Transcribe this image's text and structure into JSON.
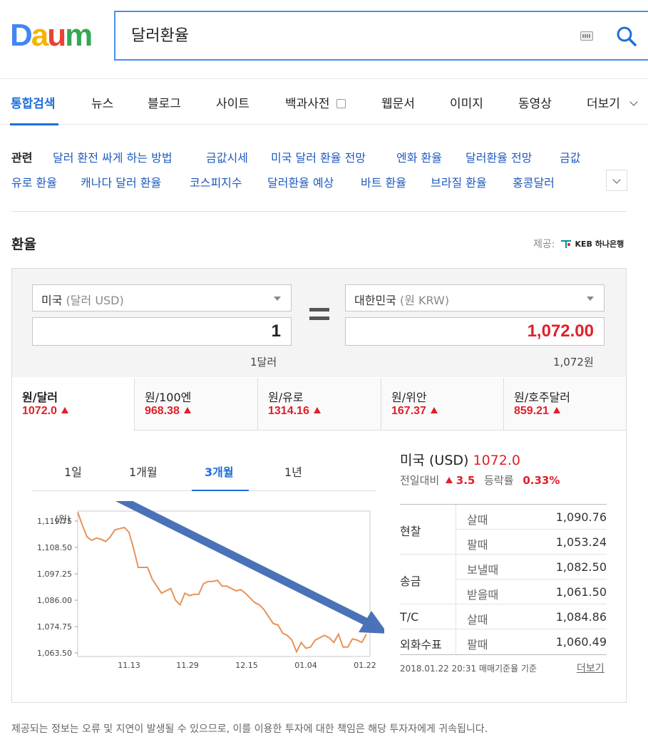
{
  "logo": {
    "text": [
      "D",
      "a",
      "u",
      "m"
    ],
    "colors": [
      "#4285f4",
      "#f5b400",
      "#e94335",
      "#34a853"
    ]
  },
  "search": {
    "query": "달러환율"
  },
  "tabs": [
    "통합검색",
    "뉴스",
    "블로그",
    "사이트",
    "백과사전",
    "웹문서",
    "이미지",
    "동영상",
    "더보기"
  ],
  "related": {
    "heading": "관련",
    "row1": [
      "달러 환전 싸게 하는 방법",
      "금값시세",
      "미국 달러 환율 전망",
      "엔화 환율",
      "달러환율 전망",
      "금값"
    ],
    "row2": [
      "유로 환율",
      "캐나다 달러 환율",
      "코스피지수",
      "달러환율 예상",
      "바트 환율",
      "브라질 환율",
      "홍콩달러"
    ]
  },
  "section": {
    "title": "환율",
    "provider_label": "제공:",
    "provider_name": "KEB 하나은행"
  },
  "converter": {
    "from_country": "미국",
    "from_sub": "(달러 USD)",
    "to_country": "대한민국",
    "to_sub": "(원 KRW)",
    "from_amount": "1",
    "to_amount": "1,072.00",
    "from_label": "1달러",
    "to_label": "1,072원"
  },
  "currency_tabs": [
    {
      "name": "원/달러",
      "value": "1072.0"
    },
    {
      "name": "원/100엔",
      "value": "968.38"
    },
    {
      "name": "원/유로",
      "value": "1314.16"
    },
    {
      "name": "원/위안",
      "value": "167.37"
    },
    {
      "name": "원/호주달러",
      "value": "859.21"
    }
  ],
  "periods": [
    "1일",
    "1개월",
    "3개월",
    "1년"
  ],
  "chart_data": {
    "type": "line",
    "ylabel": "(원)",
    "yticks": [
      "1,119.75",
      "1,108.50",
      "1,097.25",
      "1,086.00",
      "1,074.75",
      "1,063.50"
    ],
    "ytick_values": [
      1119.75,
      1108.5,
      1097.25,
      1086.0,
      1074.75,
      1063.5
    ],
    "xticks": [
      "11.13",
      "11.29",
      "12.15",
      "01.04",
      "01.22"
    ],
    "ylim": [
      1062.0,
      1124.0
    ],
    "values": [
      1123.5,
      1118,
      1113,
      1111.5,
      1112.5,
      1112,
      1111,
      1113,
      1116,
      1116.5,
      1117,
      1115,
      1108,
      1100,
      1100,
      1100,
      1095,
      1092,
      1089,
      1090,
      1091,
      1086,
      1084,
      1089,
      1088,
      1088.5,
      1088.5,
      1093,
      1094,
      1094,
      1094.5,
      1092,
      1092,
      1091,
      1090,
      1090.5,
      1089,
      1087,
      1085,
      1084,
      1082,
      1079,
      1076,
      1075.5,
      1072,
      1071,
      1069,
      1064,
      1068,
      1065.5,
      1066,
      1069,
      1070,
      1071,
      1070,
      1068,
      1071.5,
      1066,
      1066,
      1069.5,
      1069,
      1068,
      1071.5
    ],
    "line_color": "#e8915a",
    "arrow_color": "#4a72b8"
  },
  "rate_info": {
    "country": "미국 (USD)",
    "rate": "1072.0",
    "change_label": "전일대비",
    "change": "3.5",
    "ratio_label": "등락률",
    "ratio": "0.33%",
    "rows": [
      {
        "cat": "현찰",
        "sub": "살때",
        "val": "1,090.76"
      },
      {
        "cat": "",
        "sub": "팔때",
        "val": "1,053.24"
      },
      {
        "cat": "송금",
        "sub": "보낼때",
        "val": "1,082.50"
      },
      {
        "cat": "",
        "sub": "받을때",
        "val": "1,061.50"
      },
      {
        "cat": "T/C",
        "sub": "살때",
        "val": "1,084.86"
      },
      {
        "cat": "외화수표",
        "sub": "팔때",
        "val": "1,060.49"
      }
    ],
    "date_note": "2018.01.22 20:31 매매기준율 기준",
    "more": "더보기"
  },
  "disclaimer": "제공되는 정보는 오류 및 지연이 발생될 수 있으므로, 이를 이용한 투자에 대한 책임은 해당 투자자에게 귀속됩니다."
}
